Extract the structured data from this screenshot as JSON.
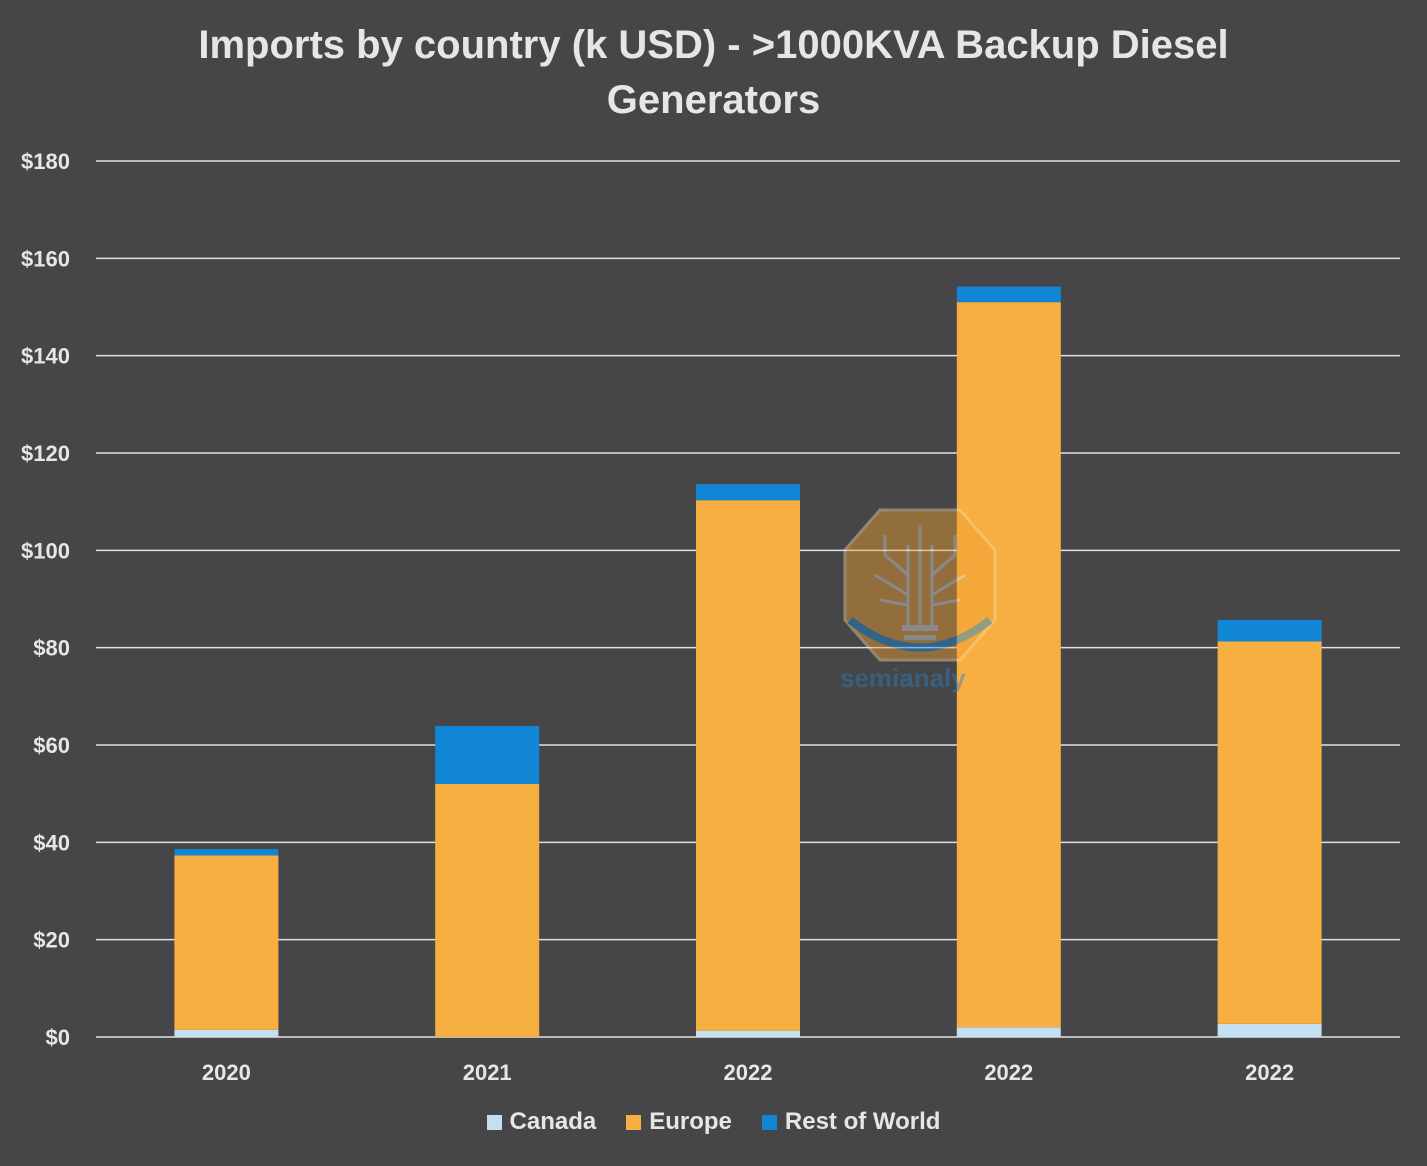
{
  "title_lines": [
    "Imports by country (k USD) - >1000KVA Backup Diesel",
    "Generators"
  ],
  "chart_data": {
    "type": "bar",
    "stacked": true,
    "title": "Imports by country (k USD) - >1000KVA Backup Diesel Generators",
    "categories": [
      "2020",
      "2021",
      "2022",
      "2022",
      "2022"
    ],
    "series": [
      {
        "name": "Canada",
        "color": "#c3dff0",
        "values": [
          1.5,
          0,
          1.3,
          2.0,
          2.7
        ]
      },
      {
        "name": "Europe",
        "color": "#f7af42",
        "values": [
          35.8,
          52,
          109.0,
          149.0,
          78.6
        ]
      },
      {
        "name": "Rest of World",
        "color": "#1086d4",
        "values": [
          1.3,
          11.9,
          3.3,
          3.2,
          4.4
        ]
      }
    ],
    "ylim": [
      0,
      180
    ],
    "yticks": [
      0,
      20,
      40,
      60,
      80,
      100,
      120,
      140,
      160,
      180
    ],
    "ytick_labels": [
      "$0",
      "$20",
      "$40",
      "$60",
      "$80",
      "$100",
      "$120",
      "$140",
      "$160",
      "$180"
    ],
    "xlabel": "",
    "ylabel": "",
    "grid": true,
    "legend_position": "bottom"
  },
  "watermark": {
    "text": "semianaly",
    "icon": "tree-circuit-icon"
  },
  "colors": {
    "background": "#464648",
    "gridline": "#e0e0e0",
    "text": "#e6e6e6"
  }
}
